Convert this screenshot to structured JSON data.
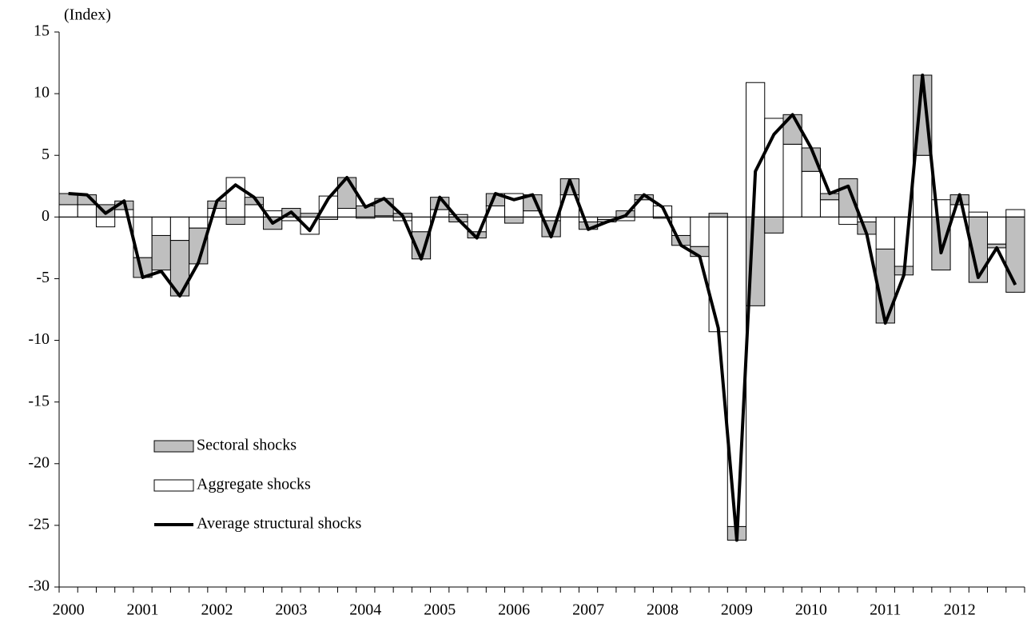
{
  "chart_data": {
    "type": "bar",
    "y_label": "(Index)",
    "categories": [
      "2000",
      null,
      null,
      null,
      "2001",
      null,
      null,
      null,
      "2002",
      null,
      null,
      null,
      "2003",
      null,
      null,
      null,
      "2004",
      null,
      null,
      null,
      "2005",
      null,
      null,
      null,
      "2006",
      null,
      null,
      null,
      "2007",
      null,
      null,
      null,
      "2008",
      null,
      null,
      null,
      "2009",
      null,
      null,
      null,
      "2010",
      null,
      null,
      null,
      "2011",
      null,
      null,
      null,
      "2012",
      null,
      null,
      null
    ],
    "series": [
      {
        "name": "Sectoral shocks",
        "type": "bar",
        "color": "#bfbfbf",
        "values": [
          0.9,
          0.8,
          1.0,
          0.7,
          -1.6,
          -2.8,
          -4.5,
          -2.9,
          0.6,
          -0.6,
          0.6,
          -1.0,
          0.7,
          0.3,
          -0.2,
          2.5,
          0.9,
          1.4,
          0.3,
          -2.2,
          1.0,
          -0.4,
          -0.5,
          1.0,
          -0.5,
          1.3,
          -1.3,
          1.3,
          -0.6,
          -0.2,
          0.5,
          0.4,
          -0.1,
          -0.8,
          -0.8,
          0.3,
          -1.1,
          -7.2,
          -1.3,
          2.4,
          1.9,
          0.5,
          3.1,
          -1.0,
          -6.0,
          -0.7,
          6.5,
          -4.3,
          0.8,
          -5.3,
          -0.3,
          -6.1
        ]
      },
      {
        "name": "Aggregate shocks",
        "type": "bar",
        "color": "#ffffff",
        "values": [
          1.0,
          1.0,
          -0.8,
          0.6,
          -3.3,
          -1.5,
          -1.9,
          -0.9,
          0.7,
          3.2,
          1.0,
          0.5,
          -0.3,
          -1.4,
          1.7,
          0.7,
          -0.1,
          0.1,
          -0.3,
          -1.2,
          0.6,
          0.2,
          -1.2,
          0.9,
          1.9,
          0.5,
          -0.3,
          1.8,
          -0.4,
          -0.2,
          -0.3,
          1.4,
          0.9,
          -1.5,
          -2.4,
          -9.3,
          -25.1,
          10.9,
          8.0,
          5.9,
          3.7,
          1.4,
          -0.6,
          -0.4,
          -2.6,
          -4.0,
          5.0,
          1.4,
          1.0,
          0.4,
          -2.2,
          0.6
        ]
      },
      {
        "name": "Average structural shocks",
        "type": "line",
        "color": "#000000",
        "values": [
          1.9,
          1.8,
          0.3,
          1.3,
          -4.9,
          -4.4,
          -6.4,
          -3.7,
          1.3,
          2.6,
          1.6,
          -0.5,
          0.4,
          -1.1,
          1.5,
          3.2,
          0.8,
          1.5,
          0.1,
          -3.4,
          1.6,
          -0.2,
          -1.7,
          1.9,
          1.4,
          1.8,
          -1.6,
          3.0,
          -1.0,
          -0.4,
          0.1,
          1.8,
          0.8,
          -2.3,
          -3.2,
          -9.0,
          -26.2,
          3.7,
          6.7,
          8.3,
          5.6,
          1.9,
          2.5,
          -1.4,
          -8.6,
          -4.7,
          11.5,
          -2.9,
          1.8,
          -4.9,
          -2.5,
          -5.5
        ]
      }
    ],
    "ylim": [
      -30,
      15
    ],
    "yticks": [
      -30,
      -25,
      -20,
      -15,
      -10,
      -5,
      0,
      5,
      10,
      15
    ]
  }
}
